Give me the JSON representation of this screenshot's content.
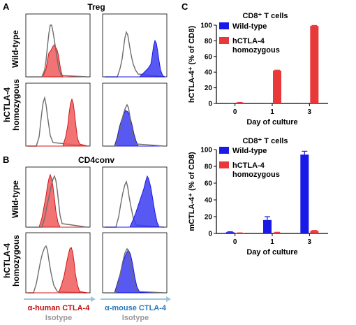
{
  "colors": {
    "red": "#e8383a",
    "red_fill": "#ef5a5a",
    "blue": "#1a1ae6",
    "blue_fill": "#3b3bf0",
    "isotype_line": "#6d6d6d",
    "footer_red": "#c01010",
    "footer_blue": "#2a78b8",
    "footer_grey": "#999999"
  },
  "panel_a": {
    "letter": "A",
    "title": "Treg",
    "row_labels": [
      "Wild-type",
      "hCTLA-4\nhomozygous"
    ]
  },
  "panel_b": {
    "letter": "B",
    "title": "CD4conv",
    "row_labels": [
      "Wild-type",
      "hCTLA-4\nhomozygous"
    ]
  },
  "panel_c": {
    "letter": "C"
  },
  "footer": {
    "red_label": "α-human CTLA-4",
    "blue_label": "α-mouse CTLA-4",
    "isotype_left": "Isotype",
    "isotype_right": "Isotype"
  },
  "chart_data": [
    {
      "type": "bar",
      "title": "CD8⁺ T cells",
      "xlabel": "Day of culture",
      "ylabel": "hCTLA-4⁺ (% of CD8)",
      "categories": [
        "0",
        "1",
        "3"
      ],
      "ylim": [
        0,
        100
      ],
      "yticks": [
        0,
        20,
        40,
        60,
        80,
        100
      ],
      "series": [
        {
          "name": "Wild-type",
          "values": [
            0,
            0,
            0
          ],
          "errors": [
            0,
            0,
            0
          ],
          "color": "#1a1ae6"
        },
        {
          "name": "hCTLA-4 homozygous",
          "values": [
            1,
            42,
            99
          ],
          "errors": [
            0.3,
            0.6,
            0.6
          ],
          "color": "#e8383a"
        }
      ],
      "legend": "top-left"
    },
    {
      "type": "bar",
      "title": "CD8⁺ T cells",
      "xlabel": "Day of culture",
      "ylabel": "mCTLA-4⁺ (% of CD8)",
      "categories": [
        "0",
        "1",
        "3"
      ],
      "ylim": [
        0,
        100
      ],
      "yticks": [
        0,
        20,
        40,
        60,
        80,
        100
      ],
      "series": [
        {
          "name": "Wild-type",
          "values": [
            1.5,
            16,
            94
          ],
          "errors": [
            0.5,
            4,
            4
          ],
          "color": "#1a1ae6"
        },
        {
          "name": "hCTLA-4 homozygous",
          "values": [
            0.5,
            1,
            3
          ],
          "errors": [
            0.2,
            0.4,
            0.6
          ],
          "color": "#e8383a"
        }
      ],
      "legend": "top-left"
    }
  ]
}
